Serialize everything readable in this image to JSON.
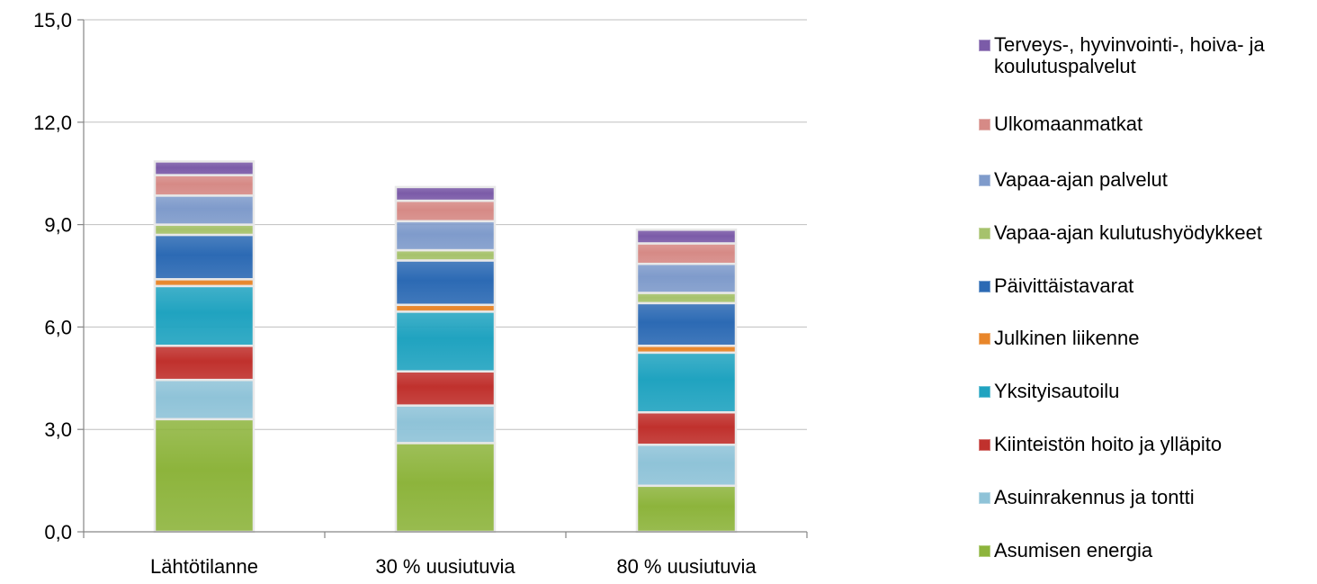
{
  "chart_data": {
    "type": "bar",
    "stacked": true,
    "categories": [
      "Lähtötilanne",
      "30 % uusiutuvia",
      "80 % uusiutuvia"
    ],
    "ylim": [
      0,
      15
    ],
    "yticks": [
      "0,0",
      "3,0",
      "6,0",
      "9,0",
      "12,0",
      "15,0"
    ],
    "ytick_values": [
      0,
      3,
      6,
      9,
      12,
      15
    ],
    "grid": true,
    "legend_position": "right",
    "series": [
      {
        "name": "Asumisen energia",
        "color": "#8DB43C",
        "values": [
          3.3,
          2.6,
          1.35
        ]
      },
      {
        "name": "Asuinrakennus ja tontti",
        "color": "#8FC3D8",
        "values": [
          1.15,
          1.1,
          1.2
        ]
      },
      {
        "name": "Kiinteistön hoito ja ylläpito",
        "color": "#C0312D",
        "values": [
          1.0,
          1.0,
          0.95
        ]
      },
      {
        "name": "Yksityisautoilu",
        "color": "#20A3C0",
        "values": [
          1.75,
          1.75,
          1.75
        ]
      },
      {
        "name": "Julkinen liikenne",
        "color": "#E8862A",
        "values": [
          0.2,
          0.2,
          0.2
        ]
      },
      {
        "name": "Päivittäistavarat",
        "color": "#2C6AB4",
        "values": [
          1.3,
          1.3,
          1.25
        ]
      },
      {
        "name": "Vapaa-ajan kulutushyödykkeet",
        "color": "#A6C26C",
        "values": [
          0.3,
          0.3,
          0.3
        ]
      },
      {
        "name": "Vapaa-ajan palvelut",
        "color": "#7F9BCB",
        "values": [
          0.85,
          0.85,
          0.85
        ]
      },
      {
        "name": "Ulkomaanmatkat",
        "color": "#D68A86",
        "values": [
          0.6,
          0.6,
          0.6
        ]
      },
      {
        "name": "Terveys-, hyvinvointi-, hoiva- ja koulutuspalvelut",
        "color": "#7B5BA8",
        "values": [
          0.4,
          0.4,
          0.4
        ]
      }
    ]
  }
}
